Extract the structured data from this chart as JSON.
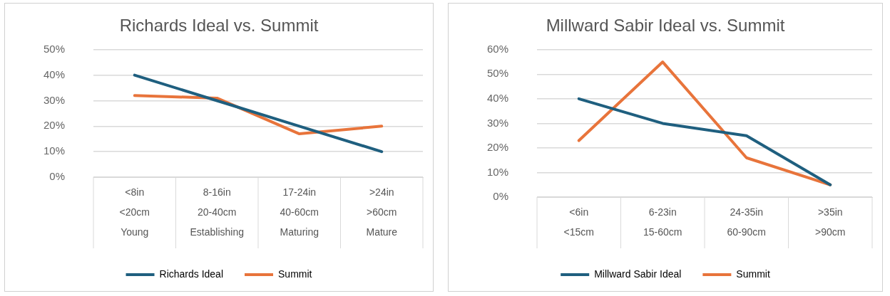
{
  "chart_data": [
    {
      "type": "line",
      "title": "Richards Ideal vs. Summit",
      "categories": [
        "<8in\n<20cm\nYoung",
        "8-16in\n20-40cm\nEstablishing",
        "17-24in\n40-60cm\nMaturing",
        ">24in\n>60cm\nMature"
      ],
      "series": [
        {
          "name": "Richards Ideal",
          "color": "#1f5f7f",
          "values": [
            40,
            30,
            20,
            10
          ]
        },
        {
          "name": "Summit",
          "color": "#e8743b",
          "values": [
            32,
            31,
            17,
            20
          ]
        }
      ],
      "ylim": [
        0,
        50
      ],
      "yticks": [
        {
          "value": 0,
          "label": "0%"
        },
        {
          "value": 10,
          "label": "10%"
        },
        {
          "value": 20,
          "label": "20%"
        },
        {
          "value": 30,
          "label": "30%"
        },
        {
          "value": 40,
          "label": "40%"
        },
        {
          "value": 50,
          "label": "50%"
        }
      ],
      "grid": "y",
      "legend": "bottom",
      "marker": "none",
      "line_style": "solid"
    },
    {
      "type": "line",
      "title": "Millward Sabir Ideal vs. Summit",
      "categories": [
        "<6in\n<15cm",
        "6-23in\n15-60cm",
        "24-35in\n60-90cm",
        ">35in\n>90cm"
      ],
      "series": [
        {
          "name": "Millward Sabir Ideal",
          "color": "#1f5f7f",
          "values": [
            40,
            30,
            25,
            5
          ]
        },
        {
          "name": "Summit",
          "color": "#e8743b",
          "values": [
            23,
            55,
            16,
            5
          ]
        }
      ],
      "ylim": [
        0,
        60
      ],
      "yticks": [
        {
          "value": 0,
          "label": "0%"
        },
        {
          "value": 10,
          "label": "10%"
        },
        {
          "value": 20,
          "label": "20%"
        },
        {
          "value": 30,
          "label": "30%"
        },
        {
          "value": 40,
          "label": "40%"
        },
        {
          "value": 50,
          "label": "50%"
        },
        {
          "value": 60,
          "label": "60%"
        }
      ],
      "grid": "y",
      "legend": "bottom",
      "marker": "none",
      "line_style": "solid"
    }
  ]
}
